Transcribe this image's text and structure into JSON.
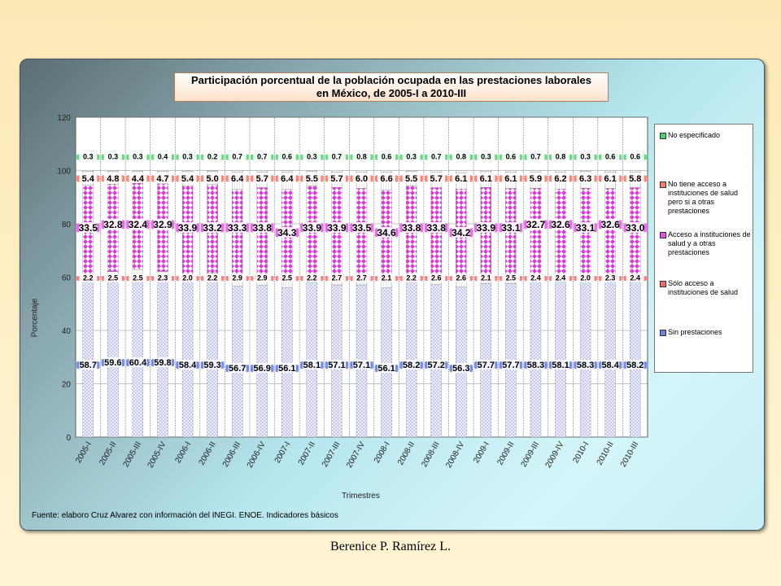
{
  "footer": {
    "author": "Berenice P. Ramírez L."
  },
  "chart_data": {
    "type": "bar",
    "stacked": true,
    "title": "Participación porcentual de la población ocupada en las prestaciones laborales en México, de 2005-I a 2010-III",
    "title_lines": [
      "Participación porcentual de la población ocupada en las prestaciones laborales",
      "en México, de 2005-I a 2010-III"
    ],
    "xlabel": "Trimestres",
    "ylabel": "Porcentaje",
    "ylim": [
      0,
      120
    ],
    "yticks": [
      0,
      20,
      40,
      60,
      80,
      100,
      120
    ],
    "grid": true,
    "legend_position": "right",
    "source": "Fuente: elaboro Cruz Alvarez con información del INEGI. ENOE. Indicadores básicos",
    "categories": [
      "2005-I",
      "2005-II",
      "2005-III",
      "2005-IV",
      "2006-I",
      "2006-II",
      "2006-III",
      "2006-IV",
      "2007-I",
      "2007-II",
      "2007-III",
      "2007-IV",
      "2008-I",
      "2008-II",
      "2008-III",
      "2008-IV",
      "2009-I",
      "2009-II",
      "2009-III",
      "2009-IV",
      "2010-I",
      "2010-II",
      "2010-III"
    ],
    "series": [
      {
        "name": "Sin prestaciones",
        "color": "#6a7fe0",
        "values": [
          58.7,
          59.6,
          60.4,
          59.8,
          58.4,
          59.3,
          56.7,
          56.9,
          56.1,
          58.1,
          57.1,
          57.1,
          56.1,
          58.2,
          57.2,
          56.3,
          57.7,
          57.7,
          58.3,
          58.1,
          58.3,
          58.4,
          58.2
        ]
      },
      {
        "name": "Sólo acceso a instituciones de salud",
        "color": "#f06a6a",
        "values": [
          2.2,
          2.5,
          2.5,
          2.3,
          2.0,
          2.2,
          2.9,
          2.9,
          2.5,
          2.2,
          2.7,
          2.7,
          2.1,
          2.2,
          2.6,
          2.6,
          2.1,
          2.5,
          2.4,
          2.4,
          2.0,
          2.3,
          2.4
        ]
      },
      {
        "name": "Acceso a instituciones de salud y a otras prestaciones",
        "color": "#e14fe6",
        "values": [
          33.5,
          32.8,
          32.4,
          32.9,
          33.9,
          33.2,
          33.3,
          33.8,
          34.3,
          33.9,
          33.9,
          33.5,
          34.6,
          33.8,
          33.8,
          34.2,
          33.9,
          33.1,
          32.7,
          32.6,
          33.1,
          32.6,
          33.0
        ]
      },
      {
        "name": "No tiene acceso a instituciones de salud pero si a otras prestaciones",
        "color": "#f0826a",
        "values": [
          5.4,
          4.8,
          4.4,
          4.7,
          5.4,
          5.0,
          6.4,
          5.7,
          6.4,
          5.5,
          5.7,
          6.0,
          6.6,
          5.5,
          5.7,
          6.1,
          6.1,
          6.1,
          5.9,
          6.2,
          6.3,
          6.1,
          5.8
        ]
      },
      {
        "name": "No especificado",
        "color": "#4cd06a",
        "values": [
          0.3,
          0.3,
          0.3,
          0.4,
          0.3,
          0.2,
          0.7,
          0.7,
          0.6,
          0.3,
          0.7,
          0.8,
          0.6,
          0.3,
          0.7,
          0.8,
          0.3,
          0.6,
          0.7,
          0.8,
          0.3,
          0.6,
          0.6
        ]
      }
    ],
    "legend_order": [
      4,
      3,
      2,
      1,
      0
    ]
  }
}
